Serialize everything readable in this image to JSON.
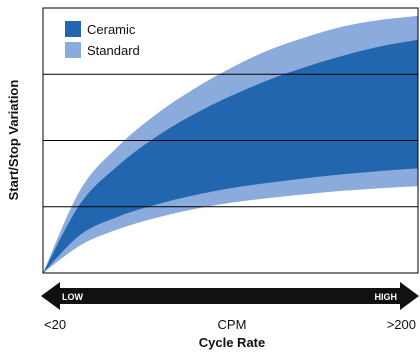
{
  "chart_data": {
    "type": "area",
    "title": "",
    "xlabel": "Cycle Rate",
    "ylabel": "Start/Stop Variation",
    "x_unit_label": "CPM",
    "x_min_label": "<20",
    "x_max_label": ">200",
    "arrow": {
      "low_label": "LOW",
      "high_label": "HIGH"
    },
    "legend_position": "top-left",
    "grid": true,
    "x": [
      0,
      0.1,
      0.2,
      0.3,
      0.4,
      0.5,
      0.6,
      0.7,
      0.8,
      0.9,
      1.0
    ],
    "ylim": [
      0,
      4
    ],
    "series": [
      {
        "name": "Ceramic",
        "color": "#2166ae",
        "lower": [
          0,
          0.58,
          0.85,
          1.03,
          1.17,
          1.28,
          1.36,
          1.43,
          1.49,
          1.54,
          1.58
        ],
        "upper": [
          0,
          1.05,
          1.62,
          2.05,
          2.39,
          2.67,
          2.91,
          3.11,
          3.28,
          3.42,
          3.52
        ]
      },
      {
        "name": "Standard",
        "color": "#8aabdb",
        "lower": [
          0,
          0.42,
          0.66,
          0.83,
          0.96,
          1.06,
          1.13,
          1.19,
          1.24,
          1.28,
          1.31
        ],
        "upper": [
          0,
          1.26,
          1.91,
          2.39,
          2.77,
          3.09,
          3.36,
          3.56,
          3.72,
          3.82,
          3.88
        ]
      }
    ]
  }
}
